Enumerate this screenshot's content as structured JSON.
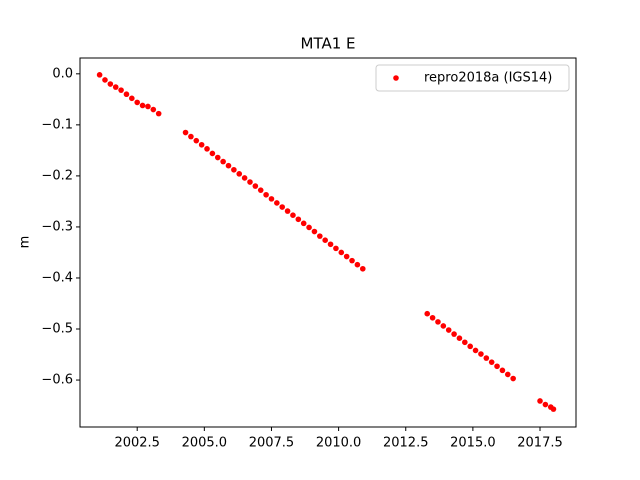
{
  "chart_data": {
    "type": "scatter",
    "title": "MTA1 E",
    "y_label": "m",
    "series": [
      {
        "name": "repro2018a (IGS14)",
        "color": "#ff0000",
        "x": [
          2001.1,
          2001.3,
          2001.5,
          2001.7,
          2001.9,
          2002.1,
          2002.3,
          2002.5,
          2002.7,
          2002.9,
          2003.1,
          2003.3,
          2004.3,
          2004.5,
          2004.7,
          2004.9,
          2005.1,
          2005.3,
          2005.5,
          2005.7,
          2005.9,
          2006.1,
          2006.3,
          2006.5,
          2006.7,
          2006.9,
          2007.1,
          2007.3,
          2007.5,
          2007.7,
          2007.9,
          2008.1,
          2008.3,
          2008.5,
          2008.7,
          2008.9,
          2009.1,
          2009.3,
          2009.5,
          2009.7,
          2009.9,
          2010.1,
          2010.3,
          2010.5,
          2010.7,
          2010.9,
          2013.3,
          2013.5,
          2013.7,
          2013.9,
          2014.1,
          2014.3,
          2014.5,
          2014.7,
          2014.9,
          2015.1,
          2015.3,
          2015.5,
          2015.7,
          2015.9,
          2016.1,
          2016.3,
          2016.5,
          2017.5,
          2017.7,
          2017.9,
          2018.0
        ],
        "values": [
          -0.002,
          -0.012,
          -0.02,
          -0.026,
          -0.032,
          -0.04,
          -0.048,
          -0.056,
          -0.062,
          -0.064,
          -0.07,
          -0.078,
          -0.115,
          -0.123,
          -0.131,
          -0.139,
          -0.147,
          -0.156,
          -0.164,
          -0.172,
          -0.18,
          -0.188,
          -0.196,
          -0.204,
          -0.212,
          -0.22,
          -0.228,
          -0.237,
          -0.245,
          -0.253,
          -0.261,
          -0.269,
          -0.277,
          -0.285,
          -0.293,
          -0.301,
          -0.309,
          -0.318,
          -0.326,
          -0.334,
          -0.342,
          -0.35,
          -0.358,
          -0.366,
          -0.374,
          -0.382,
          -0.47,
          -0.478,
          -0.486,
          -0.494,
          -0.502,
          -0.51,
          -0.518,
          -0.526,
          -0.534,
          -0.542,
          -0.549,
          -0.557,
          -0.565,
          -0.573,
          -0.581,
          -0.589,
          -0.597,
          -0.641,
          -0.648,
          -0.653,
          -0.657
        ]
      }
    ],
    "xlim": [
      2000.37,
      2018.84
    ],
    "ylim": [
      -0.692,
      0.031
    ],
    "xticks": [
      {
        "value": 2002.5,
        "label": "2002.5"
      },
      {
        "value": 2005,
        "label": "2005.0"
      },
      {
        "value": 2007.5,
        "label": "2007.5"
      },
      {
        "value": 2010,
        "label": "2010.0"
      },
      {
        "value": 2012.5,
        "label": "2012.5"
      },
      {
        "value": 2015,
        "label": "2015.0"
      },
      {
        "value": 2017.5,
        "label": "2017.5"
      }
    ],
    "yticks": [
      {
        "value": 0,
        "label": "0.0"
      },
      {
        "value": -0.1,
        "label": "−0.1"
      },
      {
        "value": -0.2,
        "label": "−0.2"
      },
      {
        "value": -0.3,
        "label": "−0.3"
      },
      {
        "value": -0.4,
        "label": "−0.4"
      },
      {
        "value": -0.5,
        "label": "−0.5"
      },
      {
        "value": -0.6,
        "label": "−0.6"
      }
    ],
    "legend": "upper right"
  }
}
